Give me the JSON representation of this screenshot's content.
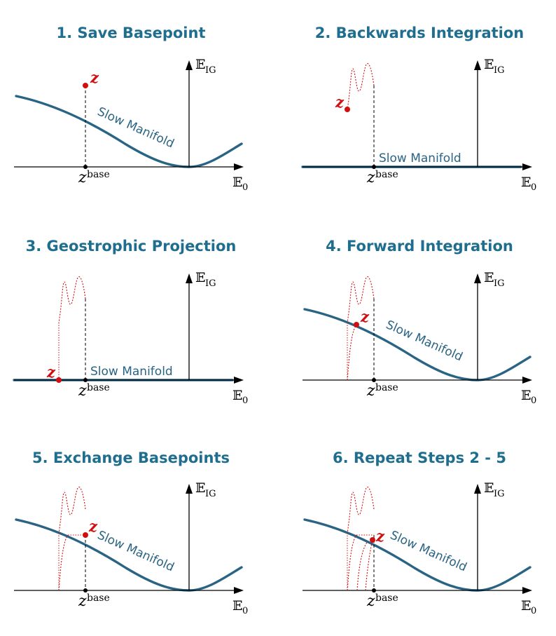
{
  "panels": [
    {
      "title": "1. Save Basepoint",
      "manifold_label": "Slow Manifold",
      "point_label": "z",
      "base_label": "z",
      "base_sup": "base",
      "y_axis": "E",
      "y_axis_sub": "IG",
      "x_axis": "E",
      "x_axis_sub": "0"
    },
    {
      "title": "2. Backwards Integration",
      "manifold_label": "Slow Manifold",
      "point_label": "z",
      "base_label": "z",
      "base_sup": "base",
      "y_axis": "E",
      "y_axis_sub": "IG",
      "x_axis": "E",
      "x_axis_sub": "0"
    },
    {
      "title": "3. Geostrophic Projection",
      "manifold_label": "Slow Manifold",
      "point_label": "z",
      "base_label": "z",
      "base_sup": "base",
      "y_axis": "E",
      "y_axis_sub": "IG",
      "x_axis": "E",
      "x_axis_sub": "0"
    },
    {
      "title": "4. Forward Integration",
      "manifold_label": "Slow Manifold",
      "point_label": "z",
      "base_label": "z",
      "base_sup": "base",
      "y_axis": "E",
      "y_axis_sub": "IG",
      "x_axis": "E",
      "x_axis_sub": "0"
    },
    {
      "title": "5. Exchange Basepoints",
      "manifold_label": "Slow Manifold",
      "point_label": "z",
      "base_label": "z",
      "base_sup": "base",
      "y_axis": "E",
      "y_axis_sub": "IG",
      "x_axis": "E",
      "x_axis_sub": "0"
    },
    {
      "title": "6. Repeat Steps 2 - 5",
      "manifold_label": "Slow Manifold",
      "point_label": "z",
      "base_label": "z",
      "base_sup": "base",
      "y_axis": "E",
      "y_axis_sub": "IG",
      "x_axis": "E",
      "x_axis_sub": "0"
    }
  ],
  "colors": {
    "title": "#1f6e8f",
    "manifold": "#2a6485",
    "point": "#d01010",
    "axis": "#000000"
  }
}
